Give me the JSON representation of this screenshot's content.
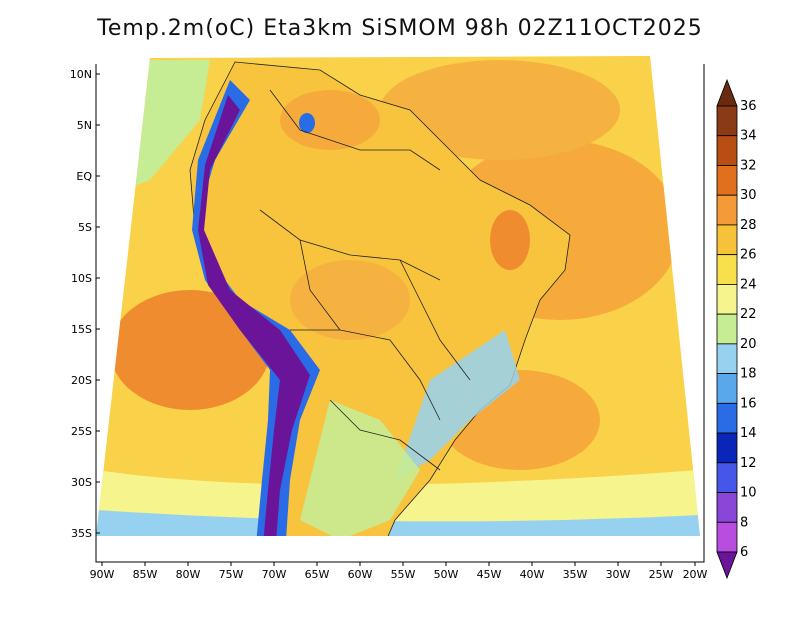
{
  "title": "Temp.2m(oC) Eta3km SiSMOM 98h 02Z11OCT2025",
  "lat_ticks": [
    "10N",
    "5N",
    "EQ",
    "5S",
    "10S",
    "15S",
    "20S",
    "25S",
    "30S",
    "35S"
  ],
  "lon_ticks": [
    "90W",
    "85W",
    "80W",
    "75W",
    "70W",
    "65W",
    "60W",
    "55W",
    "50W",
    "45W",
    "40W",
    "35W",
    "30W",
    "25W",
    "20W"
  ],
  "colorbar": {
    "labels": [
      "36",
      "34",
      "32",
      "30",
      "28",
      "26",
      "24",
      "22",
      "20",
      "18",
      "16",
      "14",
      "12",
      "10",
      "8",
      "6"
    ],
    "colors": [
      "#6a2a10",
      "#8a3a14",
      "#b84e14",
      "#e0701e",
      "#f59a38",
      "#f6c23a",
      "#f8df4c",
      "#f6f48c",
      "#c6ec94",
      "#96d2f0",
      "#5aa8ec",
      "#2a6ce6",
      "#0a26b8",
      "#4656e8",
      "#8a46d6",
      "#b84ee0",
      "#6a149a"
    ]
  }
}
